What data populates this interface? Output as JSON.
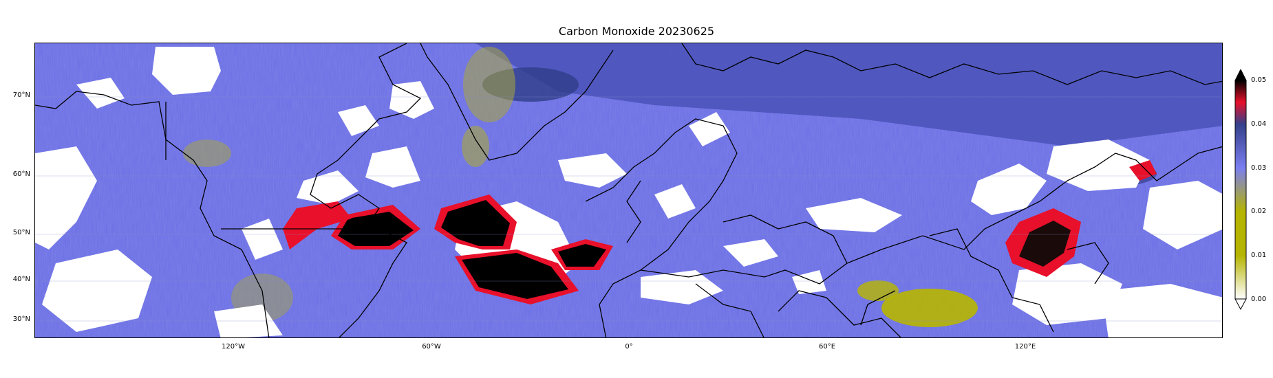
{
  "title": "Carbon Monoxide 20230625",
  "map": {
    "latitude_labels": [
      "70°N",
      "60°N",
      "50°N",
      "40°N",
      "30°N"
    ],
    "longitude_labels": [
      "120°W",
      "60°W",
      "0°",
      "60°E",
      "120°E"
    ],
    "gridlines": true,
    "missing_data_color": "#ffffff",
    "coastline_color": "#000000"
  },
  "colorbar": {
    "ticks": [
      "0.05",
      "0.04",
      "0.03",
      "0.02",
      "0.01",
      "0.00"
    ],
    "colors": [
      "#ffffff",
      "#b5b400",
      "#7b7ef0",
      "#34408a",
      "#e8102a",
      "#000000"
    ],
    "extend": "both"
  }
}
